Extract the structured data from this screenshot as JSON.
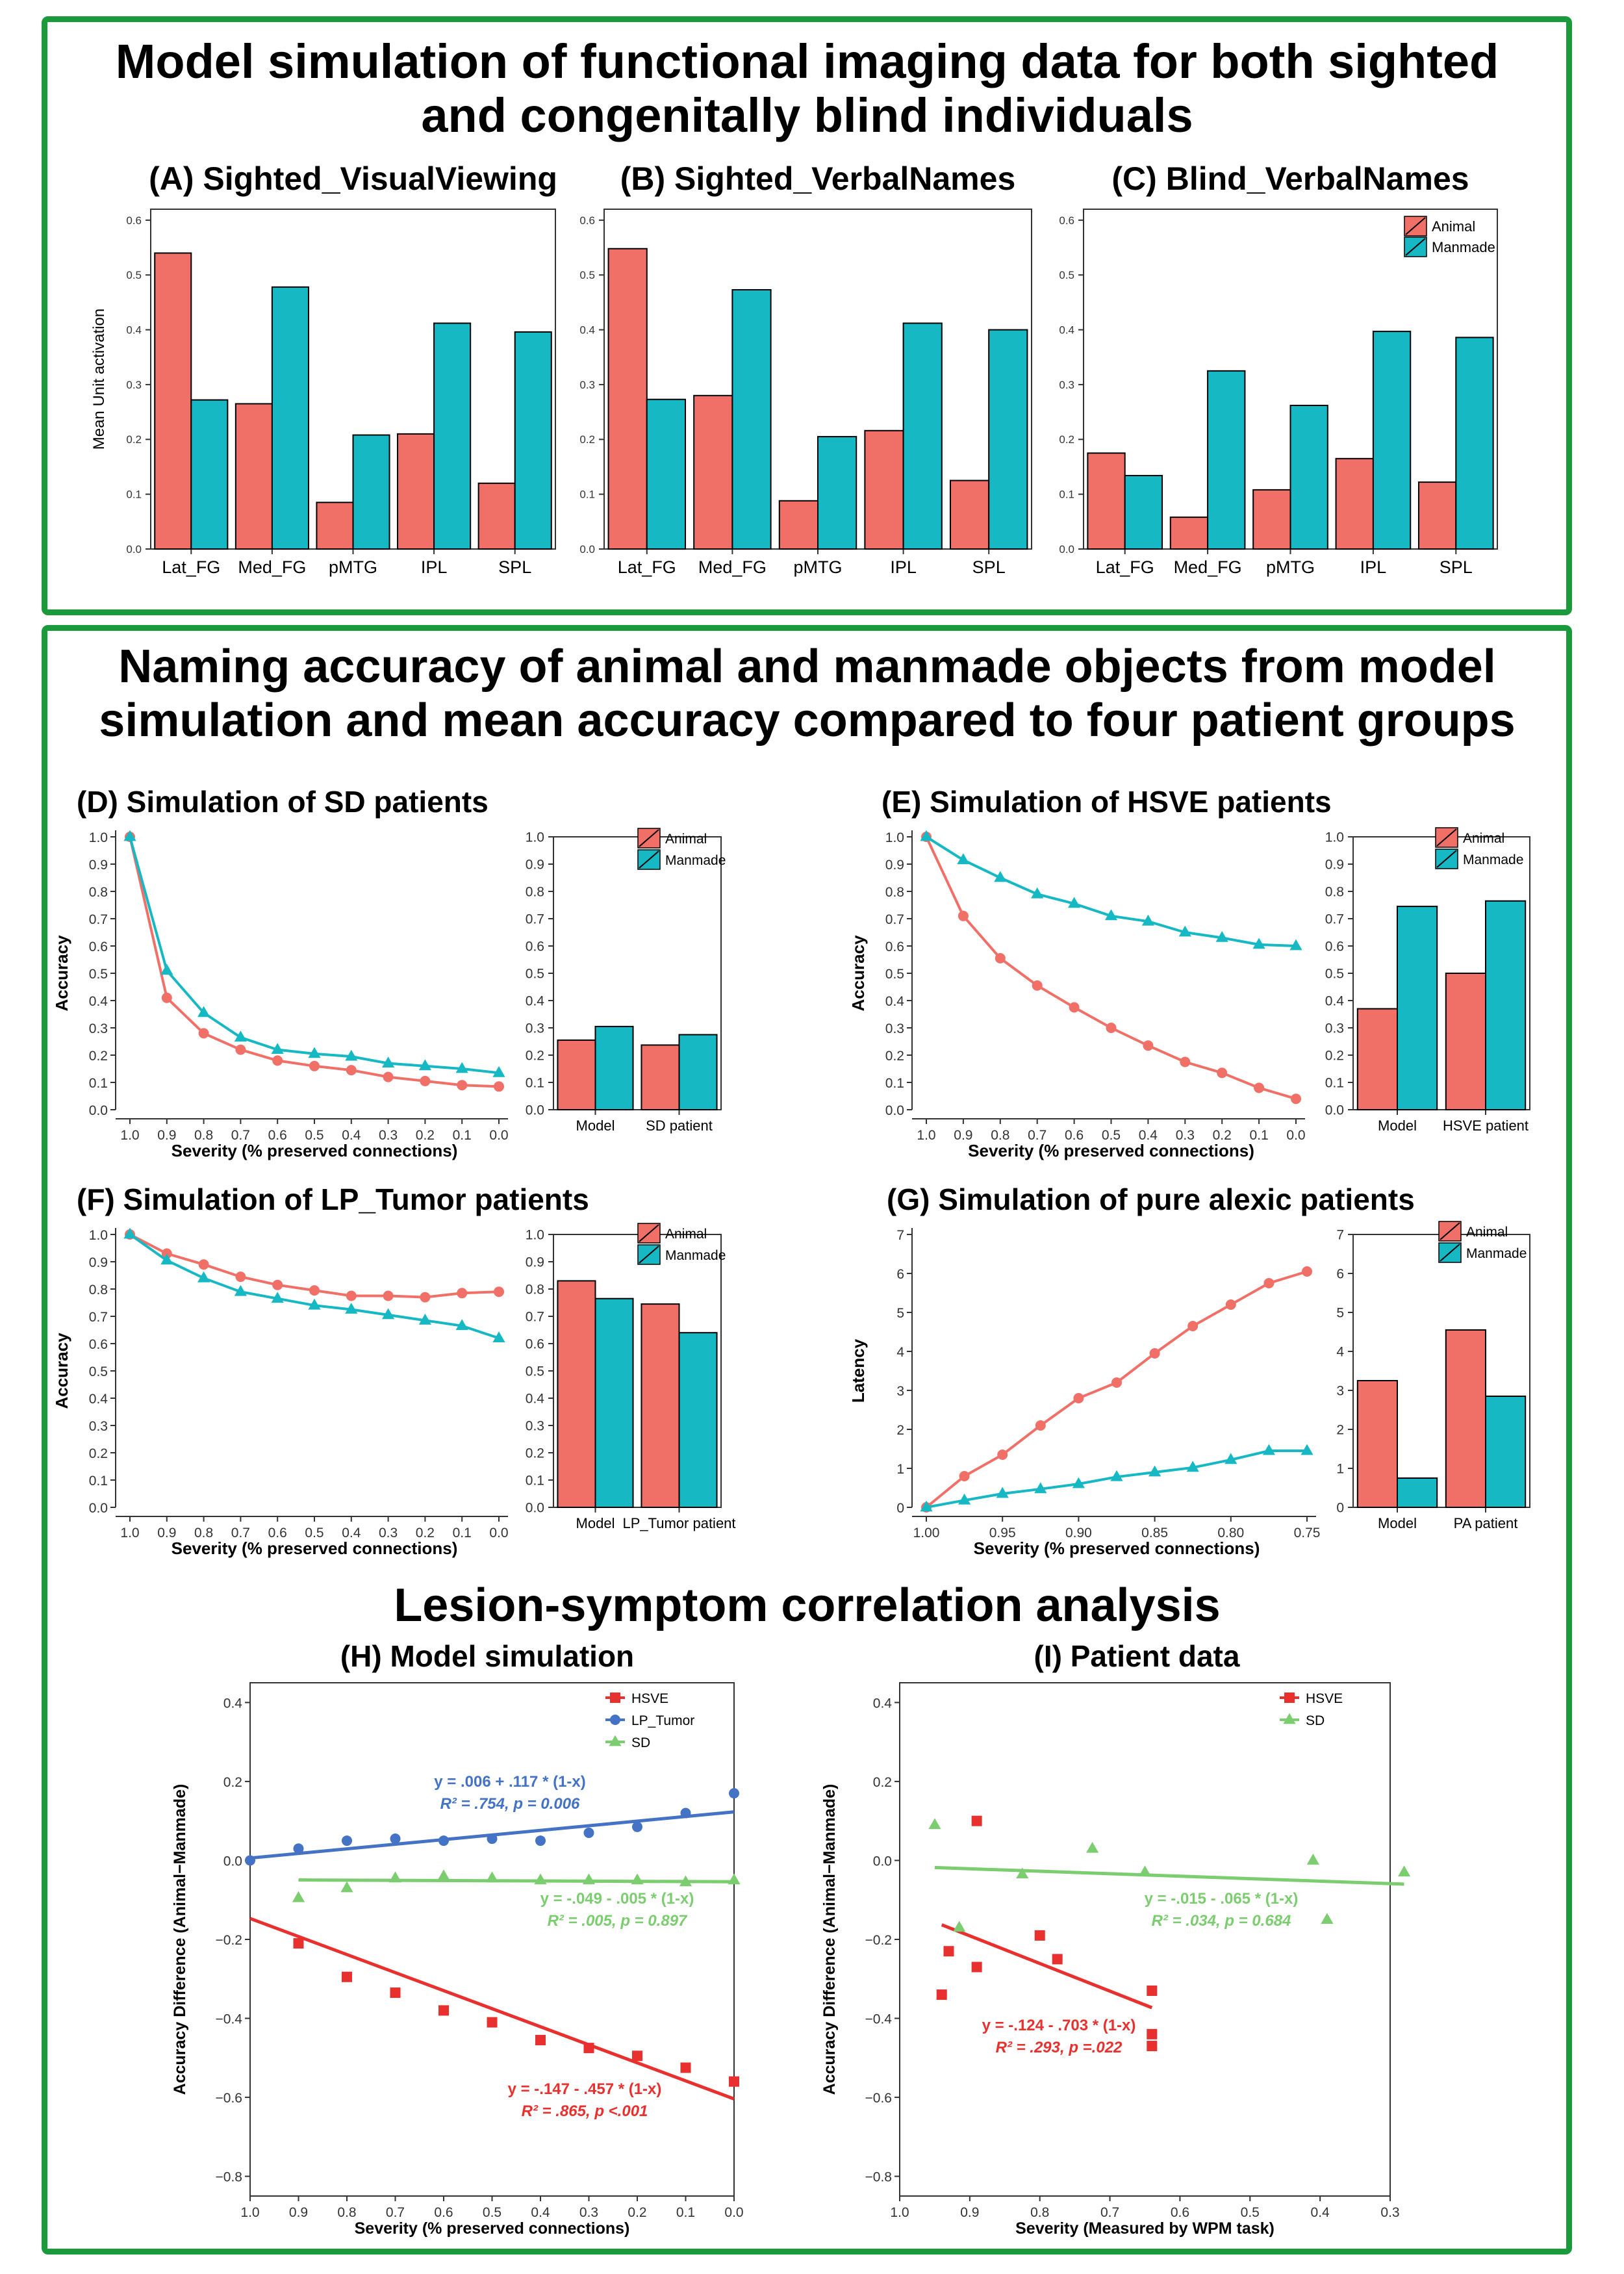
{
  "sections": {
    "top_title_line1": "Model simulation of functional imaging data for both sighted",
    "top_title_line2": "and congenitally blind individuals",
    "middle_title_line1": "Naming accuracy of animal and manmade objects from model",
    "middle_title_line2": "simulation and mean accuracy compared to four patient groups",
    "bottom_title": "Lesion-symptom correlation analysis"
  },
  "colors": {
    "animal": "#f07068",
    "manmade": "#16b8c4",
    "frame": "#1a9a3a",
    "hsve": "#e8302e",
    "lp_tumor": "#4472c4",
    "sd": "#7ccc70"
  },
  "chart_data": [
    {
      "id": "A",
      "type": "bar",
      "title": "(A) Sighted_VisualViewing",
      "categories": [
        "Lat_FG",
        "Med_FG",
        "pMTG",
        "IPL",
        "SPL"
      ],
      "ylabel": "Mean Unit activation",
      "ylim": [
        0,
        0.62
      ],
      "yticks": [
        0.0,
        0.1,
        0.2,
        0.3,
        0.4,
        0.5,
        0.6
      ],
      "series": [
        {
          "name": "Animal",
          "values": [
            0.54,
            0.265,
            0.085,
            0.21,
            0.12
          ]
        },
        {
          "name": "Manmade",
          "values": [
            0.272,
            0.478,
            0.208,
            0.412,
            0.396
          ]
        }
      ]
    },
    {
      "id": "B",
      "type": "bar",
      "title": "(B) Sighted_VerbalNames",
      "categories": [
        "Lat_FG",
        "Med_FG",
        "pMTG",
        "IPL",
        "SPL"
      ],
      "ylim": [
        0,
        0.62
      ],
      "yticks": [
        0.0,
        0.1,
        0.2,
        0.3,
        0.4,
        0.5,
        0.6
      ],
      "series": [
        {
          "name": "Animal",
          "values": [
            0.548,
            0.28,
            0.088,
            0.216,
            0.125
          ]
        },
        {
          "name": "Manmade",
          "values": [
            0.273,
            0.473,
            0.205,
            0.412,
            0.4
          ]
        }
      ]
    },
    {
      "id": "C",
      "type": "bar",
      "title": "(C) Blind_VerbalNames",
      "categories": [
        "Lat_FG",
        "Med_FG",
        "pMTG",
        "IPL",
        "SPL"
      ],
      "ylim": [
        0,
        0.62
      ],
      "yticks": [
        0.0,
        0.1,
        0.2,
        0.3,
        0.4,
        0.5,
        0.6
      ],
      "legend": [
        "Animal",
        "Manmade"
      ],
      "series": [
        {
          "name": "Animal",
          "values": [
            0.175,
            0.058,
            0.108,
            0.165,
            0.122
          ]
        },
        {
          "name": "Manmade",
          "values": [
            0.134,
            0.325,
            0.262,
            0.397,
            0.386
          ]
        }
      ]
    },
    {
      "id": "D",
      "type": "line",
      "title": "(D) Simulation of SD patients",
      "xlabel": "Severity (% preserved connections)",
      "ylabel": "Accuracy",
      "x": [
        1.0,
        0.9,
        0.8,
        0.7,
        0.6,
        0.5,
        0.4,
        0.3,
        0.2,
        0.1,
        0.0
      ],
      "xticks": [
        "1.0",
        "0.9",
        "0.8",
        "0.7",
        "0.6",
        "0.5",
        "0.4",
        "0.3",
        "0.2",
        "0.1",
        "0.0"
      ],
      "ylim": [
        0,
        1.0
      ],
      "yticks": [
        "0.0",
        "0.1",
        "0.2",
        "0.3",
        "0.4",
        "0.5",
        "0.6",
        "0.7",
        "0.8",
        "0.9",
        "1.0"
      ],
      "series": [
        {
          "name": "Animal",
          "values": [
            1.0,
            0.41,
            0.28,
            0.22,
            0.18,
            0.16,
            0.145,
            0.12,
            0.105,
            0.09,
            0.085
          ]
        },
        {
          "name": "Manmade",
          "values": [
            1.0,
            0.51,
            0.355,
            0.265,
            0.22,
            0.205,
            0.195,
            0.17,
            0.16,
            0.15,
            0.135
          ]
        }
      ]
    },
    {
      "id": "D-bar",
      "type": "bar",
      "categories": [
        "Model",
        "SD patient"
      ],
      "legend": [
        "Animal",
        "Manmade"
      ],
      "ylim": [
        0,
        1.0
      ],
      "yticks": [
        "0.0",
        "0.1",
        "0.2",
        "0.3",
        "0.4",
        "0.5",
        "0.6",
        "0.7",
        "0.8",
        "0.9",
        "1.0"
      ],
      "series": [
        {
          "name": "Animal",
          "values": [
            0.255,
            0.237
          ]
        },
        {
          "name": "Manmade",
          "values": [
            0.305,
            0.275
          ]
        }
      ]
    },
    {
      "id": "E",
      "type": "line",
      "title": "(E) Simulation of HSVE patients",
      "xlabel": "Severity (% preserved connections)",
      "ylabel": "Accuracy",
      "x": [
        1.0,
        0.9,
        0.8,
        0.7,
        0.6,
        0.5,
        0.4,
        0.3,
        0.2,
        0.1,
        0.0
      ],
      "xticks": [
        "1.0",
        "0.9",
        "0.8",
        "0.7",
        "0.6",
        "0.5",
        "0.4",
        "0.3",
        "0.2",
        "0.1",
        "0.0"
      ],
      "ylim": [
        0,
        1.0
      ],
      "yticks": [
        "0.0",
        "0.1",
        "0.2",
        "0.3",
        "0.4",
        "0.5",
        "0.6",
        "0.7",
        "0.8",
        "0.9",
        "1.0"
      ],
      "series": [
        {
          "name": "Animal",
          "values": [
            1.0,
            0.71,
            0.555,
            0.455,
            0.375,
            0.3,
            0.235,
            0.175,
            0.135,
            0.08,
            0.04
          ]
        },
        {
          "name": "Manmade",
          "values": [
            1.0,
            0.915,
            0.85,
            0.79,
            0.755,
            0.71,
            0.69,
            0.65,
            0.63,
            0.605,
            0.6
          ]
        }
      ]
    },
    {
      "id": "E-bar",
      "type": "bar",
      "categories": [
        "Model",
        "HSVE patient"
      ],
      "legend": [
        "Animal",
        "Manmade"
      ],
      "ylim": [
        0,
        1.0
      ],
      "yticks": [
        "0.0",
        "0.1",
        "0.2",
        "0.3",
        "0.4",
        "0.5",
        "0.6",
        "0.7",
        "0.8",
        "0.9",
        "1.0"
      ],
      "series": [
        {
          "name": "Animal",
          "values": [
            0.37,
            0.5
          ]
        },
        {
          "name": "Manmade",
          "values": [
            0.745,
            0.765
          ]
        }
      ]
    },
    {
      "id": "F",
      "type": "line",
      "title": "(F) Simulation of LP_Tumor patients",
      "xlabel": "Severity (% preserved connections)",
      "ylabel": "Accuracy",
      "x": [
        1.0,
        0.9,
        0.8,
        0.7,
        0.6,
        0.5,
        0.4,
        0.3,
        0.2,
        0.1,
        0.0
      ],
      "xticks": [
        "1.0",
        "0.9",
        "0.8",
        "0.7",
        "0.6",
        "0.5",
        "0.4",
        "0.3",
        "0.2",
        "0.1",
        "0.0"
      ],
      "ylim": [
        0,
        1.0
      ],
      "yticks": [
        "0.0",
        "0.1",
        "0.2",
        "0.3",
        "0.4",
        "0.5",
        "0.6",
        "0.7",
        "0.8",
        "0.9",
        "1.0"
      ],
      "series": [
        {
          "name": "Animal",
          "values": [
            1.0,
            0.93,
            0.89,
            0.845,
            0.815,
            0.795,
            0.775,
            0.775,
            0.77,
            0.785,
            0.79
          ]
        },
        {
          "name": "Manmade",
          "values": [
            1.0,
            0.905,
            0.84,
            0.79,
            0.765,
            0.74,
            0.725,
            0.705,
            0.685,
            0.665,
            0.62
          ]
        }
      ]
    },
    {
      "id": "F-bar",
      "type": "bar",
      "categories": [
        "Model",
        "LP_Tumor patient"
      ],
      "legend": [
        "Animal",
        "Manmade"
      ],
      "ylim": [
        0,
        1.0
      ],
      "yticks": [
        "0.0",
        "0.1",
        "0.2",
        "0.3",
        "0.4",
        "0.5",
        "0.6",
        "0.7",
        "0.8",
        "0.9",
        "1.0"
      ],
      "series": [
        {
          "name": "Animal",
          "values": [
            0.83,
            0.745
          ]
        },
        {
          "name": "Manmade",
          "values": [
            0.765,
            0.64
          ]
        }
      ]
    },
    {
      "id": "G",
      "type": "line",
      "title": "(G) Simulation of pure alexic patients",
      "xlabel": "Severity (% preserved connections)",
      "ylabel": "Latency",
      "x": [
        1.0,
        0.975,
        0.95,
        0.925,
        0.9,
        0.875,
        0.85,
        0.825,
        0.8,
        0.775,
        0.75
      ],
      "xticks": [
        "1.00",
        "0.95",
        "0.90",
        "0.85",
        "0.80",
        "0.75"
      ],
      "xtick_values": [
        1.0,
        0.95,
        0.9,
        0.85,
        0.8,
        0.75
      ],
      "ylim": [
        0,
        7
      ],
      "yticks": [
        "0",
        "1",
        "2",
        "3",
        "4",
        "5",
        "6",
        "7"
      ],
      "series": [
        {
          "name": "Animal",
          "values": [
            0.0,
            0.8,
            1.35,
            2.1,
            2.8,
            3.2,
            3.95,
            4.65,
            5.2,
            5.75,
            6.05
          ]
        },
        {
          "name": "Manmade",
          "values": [
            0.0,
            0.18,
            0.35,
            0.47,
            0.6,
            0.78,
            0.9,
            1.02,
            1.22,
            1.45,
            1.45
          ]
        }
      ]
    },
    {
      "id": "G-bar",
      "type": "bar",
      "categories": [
        "Model",
        "PA patient"
      ],
      "legend": [
        "Animal",
        "Manmade"
      ],
      "ylim": [
        0,
        7
      ],
      "yticks": [
        "0",
        "1",
        "2",
        "3",
        "4",
        "5",
        "6",
        "7"
      ],
      "series": [
        {
          "name": "Animal",
          "values": [
            3.25,
            4.55
          ]
        },
        {
          "name": "Manmade",
          "values": [
            0.75,
            2.85
          ]
        }
      ]
    },
    {
      "id": "H",
      "type": "scatter",
      "title": "(H) Model simulation",
      "xlabel": "Severity (% preserved connections)",
      "ylabel": "Accuracy Difference (Animal−Manmade)",
      "xlim": [
        1.0,
        0.0
      ],
      "ylim": [
        -0.85,
        0.45
      ],
      "xticks": [
        "1.0",
        "0.9",
        "0.8",
        "0.7",
        "0.6",
        "0.5",
        "0.4",
        "0.3",
        "0.2",
        "0.1",
        "0.0"
      ],
      "yticks": [
        "0.4",
        "0.2",
        "0.0",
        "−0.2",
        "−0.4",
        "−0.6",
        "−0.8"
      ],
      "legend": [
        "HSVE",
        "LP_Tumor",
        "SD"
      ],
      "series": [
        {
          "name": "HSVE",
          "x": [
            0.9,
            0.8,
            0.7,
            0.6,
            0.5,
            0.4,
            0.3,
            0.2,
            0.1,
            0.0
          ],
          "y": [
            -0.21,
            -0.295,
            -0.335,
            -0.38,
            -0.41,
            -0.455,
            -0.475,
            -0.495,
            -0.525,
            -0.56
          ],
          "fit": {
            "intercept": -0.147,
            "slope": -0.457
          }
        },
        {
          "name": "LP_Tumor",
          "x": [
            1.0,
            0.9,
            0.8,
            0.7,
            0.6,
            0.5,
            0.4,
            0.3,
            0.2,
            0.1,
            0.0
          ],
          "y": [
            0.0,
            0.03,
            0.05,
            0.055,
            0.05,
            0.055,
            0.05,
            0.07,
            0.085,
            0.12,
            0.17
          ],
          "fit": {
            "intercept": 0.006,
            "slope": 0.117
          }
        },
        {
          "name": "SD",
          "x": [
            0.9,
            0.8,
            0.7,
            0.6,
            0.5,
            0.4,
            0.3,
            0.2,
            0.1,
            0.0
          ],
          "y": [
            -0.095,
            -0.07,
            -0.045,
            -0.04,
            -0.045,
            -0.05,
            -0.05,
            -0.05,
            -0.055,
            -0.05
          ],
          "fit": {
            "intercept": -0.049,
            "slope": -0.005
          }
        }
      ],
      "annotations": [
        {
          "series": "LP_Tumor",
          "eq": "y = .006 + .117 * (1-x)",
          "r2": "R² = .754, p = 0.006"
        },
        {
          "series": "SD",
          "eq": "y = -.049 - .005 * (1-x)",
          "r2": "R² = .005, p = 0.897"
        },
        {
          "series": "HSVE",
          "eq": "y = -.147 - .457 * (1-x)",
          "r2": "R² = .865, p <.001"
        }
      ]
    },
    {
      "id": "I",
      "type": "scatter",
      "title": "(I) Patient data",
      "xlabel": "Severity (Measured by WPM task)",
      "ylabel": "Accuracy Difference (Animal−Manmade)",
      "xlim": [
        1.0,
        0.3
      ],
      "ylim": [
        -0.85,
        0.45
      ],
      "xticks": [
        "1.0",
        "0.9",
        "0.8",
        "0.7",
        "0.6",
        "0.5",
        "0.4",
        "0.3"
      ],
      "yticks": [
        "0.4",
        "0.2",
        "0.0",
        "−0.2",
        "−0.4",
        "−0.6",
        "−0.8"
      ],
      "legend": [
        "HSVE",
        "SD"
      ],
      "series": [
        {
          "name": "HSVE",
          "x": [
            0.89,
            0.94,
            0.93,
            0.89,
            0.8,
            0.775,
            0.64,
            0.64,
            0.64
          ],
          "y": [
            0.1,
            -0.34,
            -0.23,
            -0.27,
            -0.19,
            -0.25,
            -0.33,
            -0.44,
            -0.47
          ],
          "fit": {
            "x_range": [
              0.94,
              0.64
            ],
            "y_range": [
              -0.163,
              -0.373
            ]
          }
        },
        {
          "name": "SD",
          "x": [
            0.95,
            0.915,
            0.825,
            0.725,
            0.65,
            0.41,
            0.39,
            0.28
          ],
          "y": [
            0.09,
            -0.17,
            -0.035,
            0.03,
            -0.03,
            0.0,
            -0.15,
            -0.03
          ],
          "fit": {
            "x_range": [
              0.95,
              0.28
            ],
            "y_range": [
              -0.018,
              -0.06
            ]
          }
        }
      ],
      "annotations": [
        {
          "series": "SD",
          "eq": "y = -.015 - .065 * (1-x)",
          "r2": "R² = .034, p = 0.684"
        },
        {
          "series": "HSVE",
          "eq": "y = -.124 - .703 * (1-x)",
          "r2": "R² = .293, p =.022"
        }
      ]
    }
  ]
}
